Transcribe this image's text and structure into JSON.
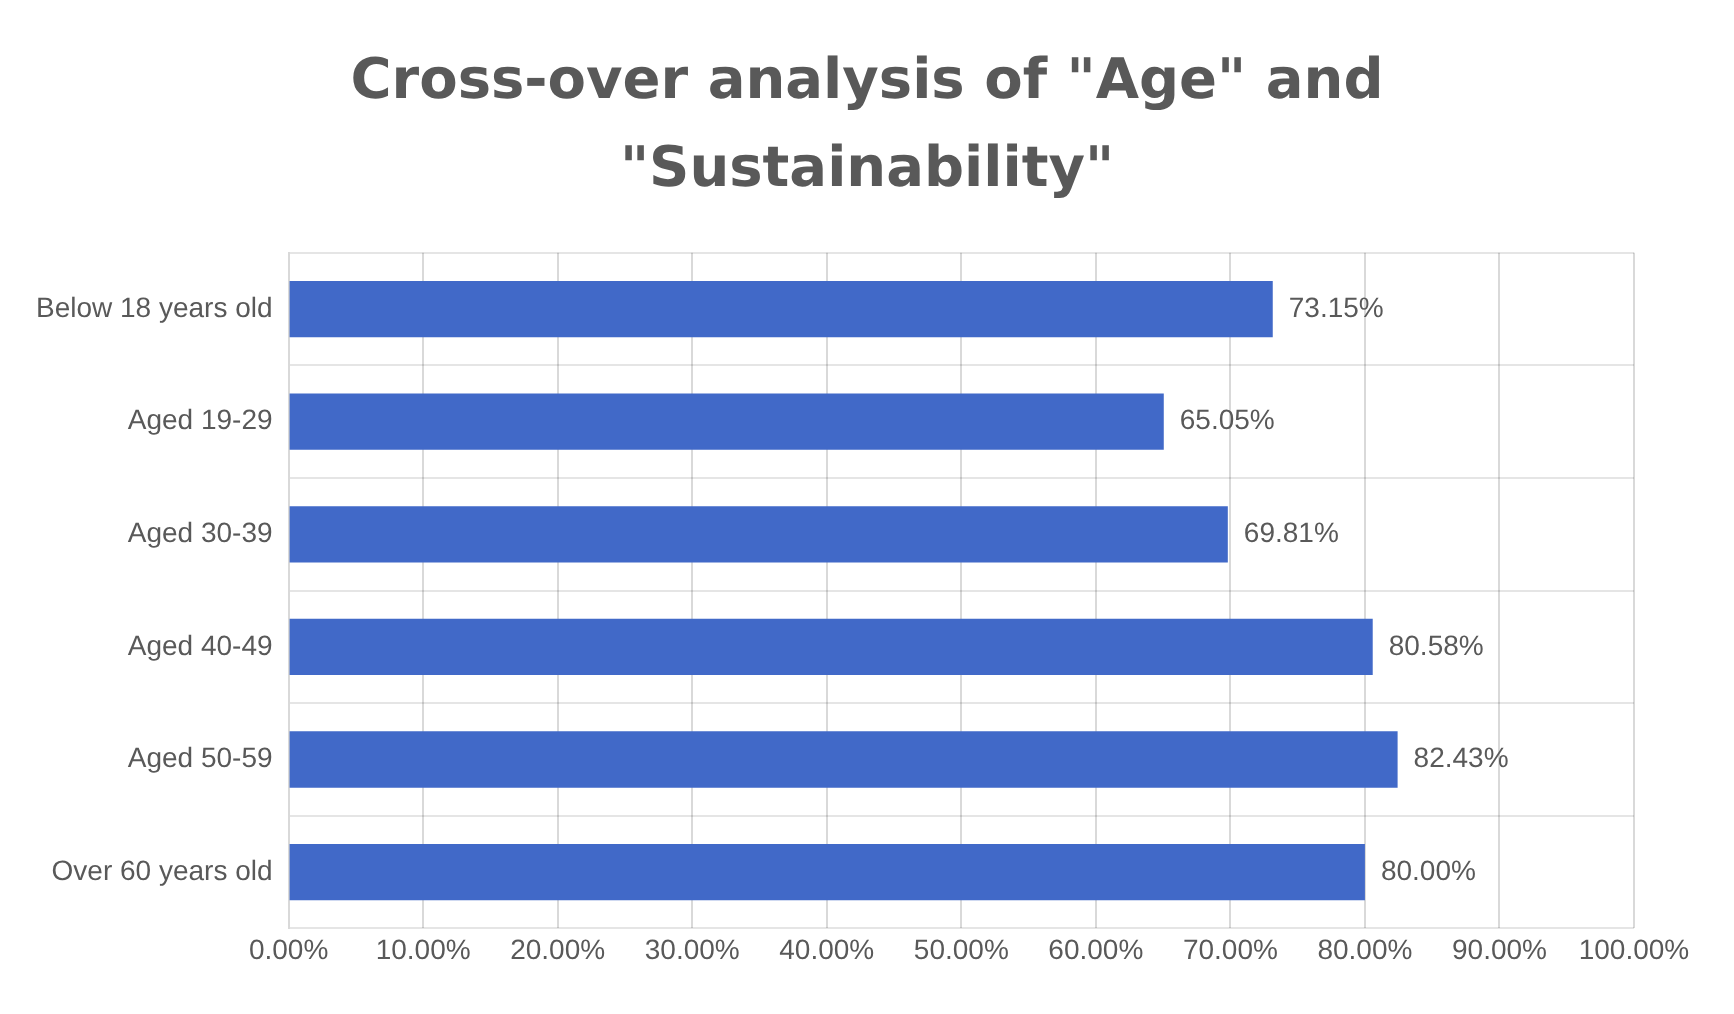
{
  "chart_data": {
    "type": "bar",
    "orientation": "horizontal",
    "title": "Cross-over analysis of \"Age\" and \"Sustainability\"",
    "categories": [
      "Below 18 years old",
      "Aged 19-29",
      "Aged 30-39",
      "Aged 40-49",
      "Aged 50-59",
      "Over 60 years old"
    ],
    "values": [
      73.15,
      65.05,
      69.81,
      80.58,
      82.43,
      80.0
    ],
    "value_labels": [
      "73.15%",
      "65.05%",
      "69.81%",
      "80.58%",
      "82.43%",
      "80.00%"
    ],
    "color": "#4169c8",
    "xlim": [
      0,
      100
    ],
    "xticks": [
      {
        "value": 0,
        "label": "0.00%"
      },
      {
        "value": 10,
        "label": "10.00%"
      },
      {
        "value": 20,
        "label": "20.00%"
      },
      {
        "value": 30,
        "label": "30.00%"
      },
      {
        "value": 40,
        "label": "40.00%"
      },
      {
        "value": 50,
        "label": "50.00%"
      },
      {
        "value": 60,
        "label": "60.00%"
      },
      {
        "value": 70,
        "label": "70.00%"
      },
      {
        "value": 80,
        "label": "80.00%"
      },
      {
        "value": 90,
        "label": "90.00%"
      },
      {
        "value": 100,
        "label": "100.00%"
      }
    ],
    "grid": true,
    "legend": false
  }
}
